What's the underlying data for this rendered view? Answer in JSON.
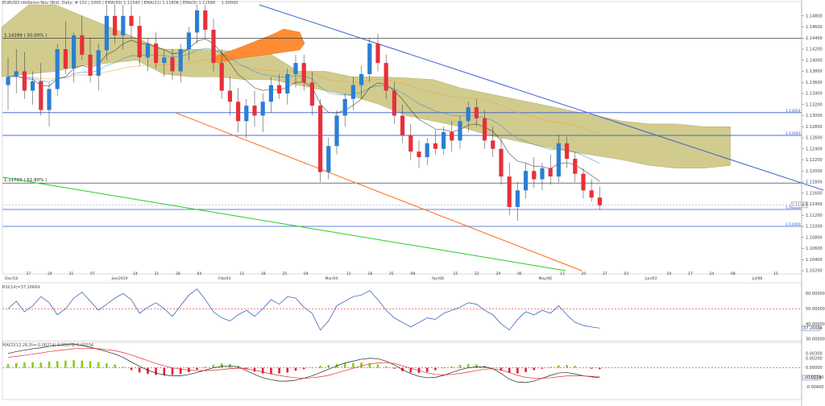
{
  "header": {
    "main_title": "EURUSD.nfeDemo-Nov (Bid), Daily, # 132 | 1000 | EMA(50) 1.12340 | EMA(21) 1.11806 | EMA(9) 1.11586",
    "sub_value": "1.00000",
    "rsi_title": "RSI(14)=37.26664",
    "macd_title": "MACD(12,26,9)=-0.00214/-0.00179/-0.00034"
  },
  "chart_data": [
    {
      "type": "candlestick",
      "title": "EURUSD Daily",
      "ylim": [
        1.102,
        1.15
      ],
      "y_ticks": [
        "1.14800",
        "1.14600",
        "1.14400",
        "1.14200",
        "1.14000",
        "1.13800",
        "1.13600",
        "1.13400",
        "1.13200",
        "1.13000",
        "1.12800",
        "1.12600",
        "1.12400",
        "1.12200",
        "1.12000",
        "1.11800",
        "1.11600",
        "1.11400",
        "1.11200",
        "1.11000",
        "1.10800",
        "1.10600",
        "1.10400",
        "1.10200"
      ],
      "x_ticks": [
        "Dec/18",
        "17",
        "24",
        "31",
        "07",
        "Jan/2019",
        "14",
        "21",
        "28",
        "04",
        "Feb/04",
        "11",
        "18",
        "25",
        "04",
        "Mar/04",
        "11",
        "18",
        "25",
        "08",
        "Apr/08",
        "15",
        "22",
        "29",
        "06",
        "May/06",
        "13",
        "20",
        "27",
        "03",
        "Jun/03",
        "10",
        "17",
        "24",
        "08",
        "Jul/08",
        "15"
      ],
      "fib_levels": [
        {
          "label": "1.14399 ( 50.00% )",
          "value": 1.14399
        },
        {
          "label": "1.11783 ( 61.80% )",
          "value": 1.11783
        }
      ],
      "hlines": [
        {
          "label": "1.13054",
          "value": 1.13054
        },
        {
          "label": "1.12643",
          "value": 1.12643
        },
        {
          "label": "1.11306",
          "value": 1.11306
        },
        {
          "label": "1.11000",
          "value": 1.11
        }
      ],
      "price_tag": "1.11387",
      "candles": [
        [
          1.1355,
          1.1405,
          1.131,
          1.137
        ],
        [
          1.137,
          1.142,
          1.134,
          1.138
        ],
        [
          1.138,
          1.1415,
          1.133,
          1.1345
        ],
        [
          1.1345,
          1.138,
          1.132,
          1.1362
        ],
        [
          1.1362,
          1.1395,
          1.13,
          1.131
        ],
        [
          1.131,
          1.136,
          1.128,
          1.1348
        ],
        [
          1.1348,
          1.143,
          1.1335,
          1.142
        ],
        [
          1.142,
          1.147,
          1.1375,
          1.1385
        ],
        [
          1.1385,
          1.145,
          1.136,
          1.1445
        ],
        [
          1.1445,
          1.148,
          1.14,
          1.141
        ],
        [
          1.141,
          1.144,
          1.136,
          1.1372
        ],
        [
          1.1372,
          1.143,
          1.1345,
          1.1418
        ],
        [
          1.1418,
          1.15,
          1.14,
          1.148
        ],
        [
          1.148,
          1.15,
          1.143,
          1.1445
        ],
        [
          1.1445,
          1.15,
          1.142,
          1.148
        ],
        [
          1.148,
          1.15,
          1.144,
          1.1462
        ],
        [
          1.1462,
          1.148,
          1.139,
          1.1405
        ],
        [
          1.1405,
          1.144,
          1.138,
          1.143
        ],
        [
          1.143,
          1.145,
          1.1385,
          1.1395
        ],
        [
          1.1395,
          1.142,
          1.137,
          1.1405
        ],
        [
          1.1405,
          1.142,
          1.1365,
          1.138
        ],
        [
          1.138,
          1.143,
          1.136,
          1.142
        ],
        [
          1.142,
          1.146,
          1.14,
          1.145
        ],
        [
          1.145,
          1.15,
          1.143,
          1.149
        ],
        [
          1.149,
          1.15,
          1.144,
          1.1455
        ],
        [
          1.1455,
          1.1475,
          1.138,
          1.1395
        ],
        [
          1.1395,
          1.142,
          1.133,
          1.1345
        ],
        [
          1.1345,
          1.137,
          1.13,
          1.1325
        ],
        [
          1.1325,
          1.135,
          1.127,
          1.129
        ],
        [
          1.129,
          1.133,
          1.126,
          1.1318
        ],
        [
          1.1318,
          1.1345,
          1.128,
          1.13
        ],
        [
          1.13,
          1.134,
          1.127,
          1.1325
        ],
        [
          1.1325,
          1.137,
          1.1305,
          1.1355
        ],
        [
          1.1355,
          1.1375,
          1.133,
          1.134
        ],
        [
          1.134,
          1.1385,
          1.132,
          1.1375
        ],
        [
          1.1375,
          1.141,
          1.135,
          1.1395
        ],
        [
          1.1395,
          1.141,
          1.1345,
          1.136
        ],
        [
          1.136,
          1.138,
          1.13,
          1.1318
        ],
        [
          1.1318,
          1.133,
          1.118,
          1.1198
        ],
        [
          1.1198,
          1.126,
          1.1185,
          1.1245
        ],
        [
          1.1245,
          1.131,
          1.123,
          1.13
        ],
        [
          1.13,
          1.134,
          1.128,
          1.133
        ],
        [
          1.133,
          1.137,
          1.131,
          1.1355
        ],
        [
          1.1355,
          1.139,
          1.133,
          1.1375
        ],
        [
          1.1375,
          1.144,
          1.136,
          1.143
        ],
        [
          1.143,
          1.1448,
          1.138,
          1.1395
        ],
        [
          1.1395,
          1.141,
          1.133,
          1.1345
        ],
        [
          1.1345,
          1.136,
          1.1285,
          1.13
        ],
        [
          1.13,
          1.132,
          1.125,
          1.1265
        ],
        [
          1.1265,
          1.1285,
          1.122,
          1.1235
        ],
        [
          1.1235,
          1.1255,
          1.1205,
          1.1225
        ],
        [
          1.1225,
          1.126,
          1.121,
          1.125
        ],
        [
          1.125,
          1.1275,
          1.123,
          1.124
        ],
        [
          1.124,
          1.128,
          1.123,
          1.127
        ],
        [
          1.127,
          1.129,
          1.1235,
          1.1255
        ],
        [
          1.1255,
          1.13,
          1.124,
          1.129
        ],
        [
          1.129,
          1.1325,
          1.127,
          1.1315
        ],
        [
          1.1315,
          1.133,
          1.128,
          1.1295
        ],
        [
          1.1295,
          1.131,
          1.124,
          1.1255
        ],
        [
          1.1255,
          1.128,
          1.1225,
          1.124
        ],
        [
          1.124,
          1.126,
          1.1175,
          1.119
        ],
        [
          1.119,
          1.1215,
          1.112,
          1.1135
        ],
        [
          1.1135,
          1.118,
          1.111,
          1.1165
        ],
        [
          1.1165,
          1.1215,
          1.115,
          1.12
        ],
        [
          1.12,
          1.1225,
          1.117,
          1.1185
        ],
        [
          1.1185,
          1.1215,
          1.1165,
          1.1205
        ],
        [
          1.1205,
          1.123,
          1.1175,
          1.119
        ],
        [
          1.119,
          1.1265,
          1.118,
          1.125
        ],
        [
          1.125,
          1.1262,
          1.1205,
          1.1222
        ],
        [
          1.1222,
          1.1235,
          1.118,
          1.1195
        ],
        [
          1.1195,
          1.1205,
          1.115,
          1.1165
        ],
        [
          1.1165,
          1.1185,
          1.1145,
          1.1152
        ],
        [
          1.1152,
          1.1172,
          1.113,
          1.1138
        ]
      ],
      "ichimoku_cloud": {
        "upper": [
          1.146,
          1.15,
          1.15,
          1.148,
          1.146,
          1.144,
          1.142,
          1.142,
          1.1418,
          1.1415,
          1.141,
          1.138,
          1.138,
          1.137,
          1.137,
          1.1368,
          1.1365,
          1.135,
          1.134,
          1.133,
          1.132,
          1.131,
          1.13,
          1.129,
          1.1285,
          1.1285,
          1.128,
          1.128
        ],
        "lower": [
          1.137,
          1.1375,
          1.138,
          1.139,
          1.1395,
          1.14,
          1.1375,
          1.137,
          1.137,
          1.1365,
          1.1365,
          1.1355,
          1.1345,
          1.1335,
          1.132,
          1.13,
          1.129,
          1.128,
          1.1265,
          1.1255,
          1.1245,
          1.1235,
          1.1228,
          1.122,
          1.121,
          1.1205,
          1.1205,
          1.121
        ]
      },
      "trendlines": [
        {
          "name": "blue-downtrend",
          "color": "#3a62c9"
        },
        {
          "name": "orange-downtrend",
          "color": "#ff6a1a"
        },
        {
          "name": "green-downtrend",
          "color": "#22cc22"
        }
      ]
    },
    {
      "type": "line",
      "title": "RSI(14)",
      "ylim": [
        30,
        65
      ],
      "y_ticks": [
        "60.00000",
        "50.00000",
        "40.00000",
        "30.00000"
      ],
      "level": 50,
      "values": [
        50,
        55,
        48,
        52,
        58,
        54,
        46,
        50,
        57,
        61,
        55,
        49,
        53,
        57,
        60,
        56,
        47,
        51,
        54,
        50,
        45,
        52,
        59,
        63,
        56,
        48,
        44,
        42,
        46,
        49,
        45,
        50,
        56,
        53,
        58,
        57,
        51,
        47,
        36,
        42,
        52,
        55,
        58,
        59,
        62,
        56,
        49,
        44,
        41,
        38,
        41,
        44,
        43,
        47,
        49,
        51,
        54,
        53,
        49,
        46,
        40,
        36,
        43,
        48,
        46,
        49,
        47,
        52,
        46,
        41,
        39,
        38,
        37.27
      ],
      "value_tag": "37.26664"
    },
    {
      "type": "bar",
      "title": "MACD(12,26,9)",
      "ylim": [
        -0.006,
        0.005
      ],
      "y_ticks": [
        "0.00300",
        "0.00200",
        "0.00000",
        "-0.00200",
        "-0.00400"
      ],
      "histogram": [
        0.0008,
        0.001,
        0.0011,
        0.0012,
        0.0011,
        0.0013,
        0.0014,
        0.0015,
        0.0016,
        0.0015,
        0.0014,
        0.0012,
        0.0009,
        0.0007,
        0.0002,
        -0.0005,
        -0.001,
        -0.0013,
        -0.0015,
        -0.0016,
        -0.0015,
        -0.0013,
        -0.0009,
        -0.0004,
        0.0002,
        0.0006,
        0.0009,
        0.0008,
        0.0004,
        -0.0003,
        -0.0008,
        -0.0012,
        -0.0013,
        -0.0012,
        -0.001,
        -0.0006,
        -0.0003,
        0.0001,
        0.0004,
        0.0006,
        0.0008,
        0.0009,
        0.001,
        0.0011,
        0.001,
        0.0007,
        0.0003,
        -0.0002,
        -0.0007,
        -0.001,
        -0.0011,
        -0.0009,
        -0.0005,
        -0.0001,
        0.0003,
        0.0006,
        0.0008,
        0.0007,
        0.0004,
        0.0,
        -0.0006,
        -0.0011,
        -0.0012,
        -0.0009,
        -0.0005,
        -0.0002,
        0.0002,
        0.0005,
        0.0006,
        0.0004,
        0.0,
        -0.0002,
        -0.0003
      ],
      "macd_line": [
        0.003,
        0.0034,
        0.0037,
        0.004,
        0.0042,
        0.0045,
        0.0047,
        0.0049,
        0.005,
        0.0047,
        0.0043,
        0.0039,
        0.0034,
        0.0029,
        0.0022,
        0.0012,
        0.0003,
        -0.0005,
        -0.0011,
        -0.0015,
        -0.0017,
        -0.0017,
        -0.0014,
        -0.001,
        -0.0005,
        0.0,
        0.0003,
        0.0004,
        0.0002,
        -0.0006,
        -0.0014,
        -0.0021,
        -0.0025,
        -0.0028,
        -0.0028,
        -0.0026,
        -0.0022,
        -0.0017,
        -0.001,
        -0.0003,
        0.0004,
        0.001,
        0.0014,
        0.0018,
        0.002,
        0.0019,
        0.0014,
        0.0006,
        -0.0004,
        -0.0012,
        -0.0018,
        -0.0021,
        -0.002,
        -0.0016,
        -0.001,
        -0.0004,
        0.0,
        0.0002,
        0.0002,
        -0.0002,
        -0.0012,
        -0.0024,
        -0.003,
        -0.0031,
        -0.0028,
        -0.0022,
        -0.0016,
        -0.0011,
        -0.001,
        -0.0013,
        -0.0017,
        -0.0019,
        -0.0021
      ],
      "signal_line": [
        0.0022,
        0.0024,
        0.0026,
        0.0029,
        0.0031,
        0.0034,
        0.0036,
        0.0038,
        0.004,
        0.0041,
        0.0041,
        0.004,
        0.0038,
        0.0036,
        0.0032,
        0.0027,
        0.0021,
        0.0015,
        0.0009,
        0.0004,
        0.0,
        -0.0003,
        -0.0005,
        -0.0006,
        -0.0006,
        -0.0005,
        -0.0004,
        -0.0002,
        -0.0001,
        -0.0002,
        -0.0005,
        -0.0009,
        -0.0013,
        -0.0016,
        -0.0019,
        -0.0021,
        -0.0022,
        -0.0021,
        -0.0019,
        -0.0016,
        -0.0011,
        -0.0006,
        -0.0001,
        0.0004,
        0.0008,
        0.001,
        0.0011,
        0.0009,
        0.0004,
        -0.0001,
        -0.0006,
        -0.0011,
        -0.0014,
        -0.0015,
        -0.0014,
        -0.0012,
        -0.0009,
        -0.0006,
        -0.0003,
        -0.0002,
        -0.0005,
        -0.001,
        -0.0016,
        -0.002,
        -0.0022,
        -0.0022,
        -0.0021,
        -0.0019,
        -0.0017,
        -0.0017,
        -0.0017,
        -0.0018,
        -0.0018
      ],
      "value_tag": "-0.00214"
    }
  ],
  "colors": {
    "bull": "#2a7fd4",
    "bear": "#e8303a",
    "cloud_fill": "#c9c27a",
    "cloud_hi": "#ff8c33",
    "grid_hline": "#2a5bd7",
    "fib": "#222222",
    "ema_fast": "#2a8ae0",
    "ema_slow": "#f0a040",
    "rsi_line": "#2a4fb0",
    "rsi_level": "#e03030",
    "macd_pos": "#88cc22",
    "macd_neg": "#e0203a",
    "macd_line": "#222222",
    "signal_line": "#e03030"
  }
}
